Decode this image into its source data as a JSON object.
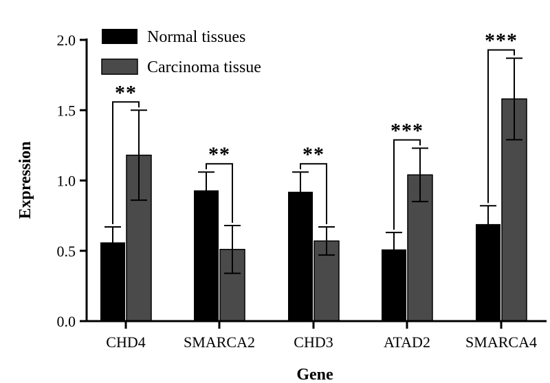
{
  "chart_data": {
    "type": "bar",
    "title": "",
    "xlabel": "Gene",
    "ylabel": "Expression",
    "ylim": [
      0,
      2.0
    ],
    "yticks": [
      "0.0",
      "0.5",
      "1.0",
      "1.5",
      "2.0"
    ],
    "grid": false,
    "legend_position": "top-left",
    "categories": [
      "CHD4",
      "SMARCA2",
      "CHD3",
      "ATAD2",
      "SMARCA4"
    ],
    "series": [
      {
        "name": "Normal tissues",
        "color": "#000000",
        "values": [
          0.56,
          0.93,
          0.92,
          0.51,
          0.69
        ],
        "errors": [
          0.11,
          0.13,
          0.14,
          0.12,
          0.13
        ]
      },
      {
        "name": "Carcinoma tissue",
        "color": "#4a4a4a",
        "values": [
          1.18,
          0.51,
          0.57,
          1.04,
          1.58
        ],
        "errors": [
          0.32,
          0.17,
          0.1,
          0.19,
          0.29
        ]
      }
    ],
    "significance": [
      "**",
      "**",
      "**",
      "***",
      "***"
    ]
  }
}
